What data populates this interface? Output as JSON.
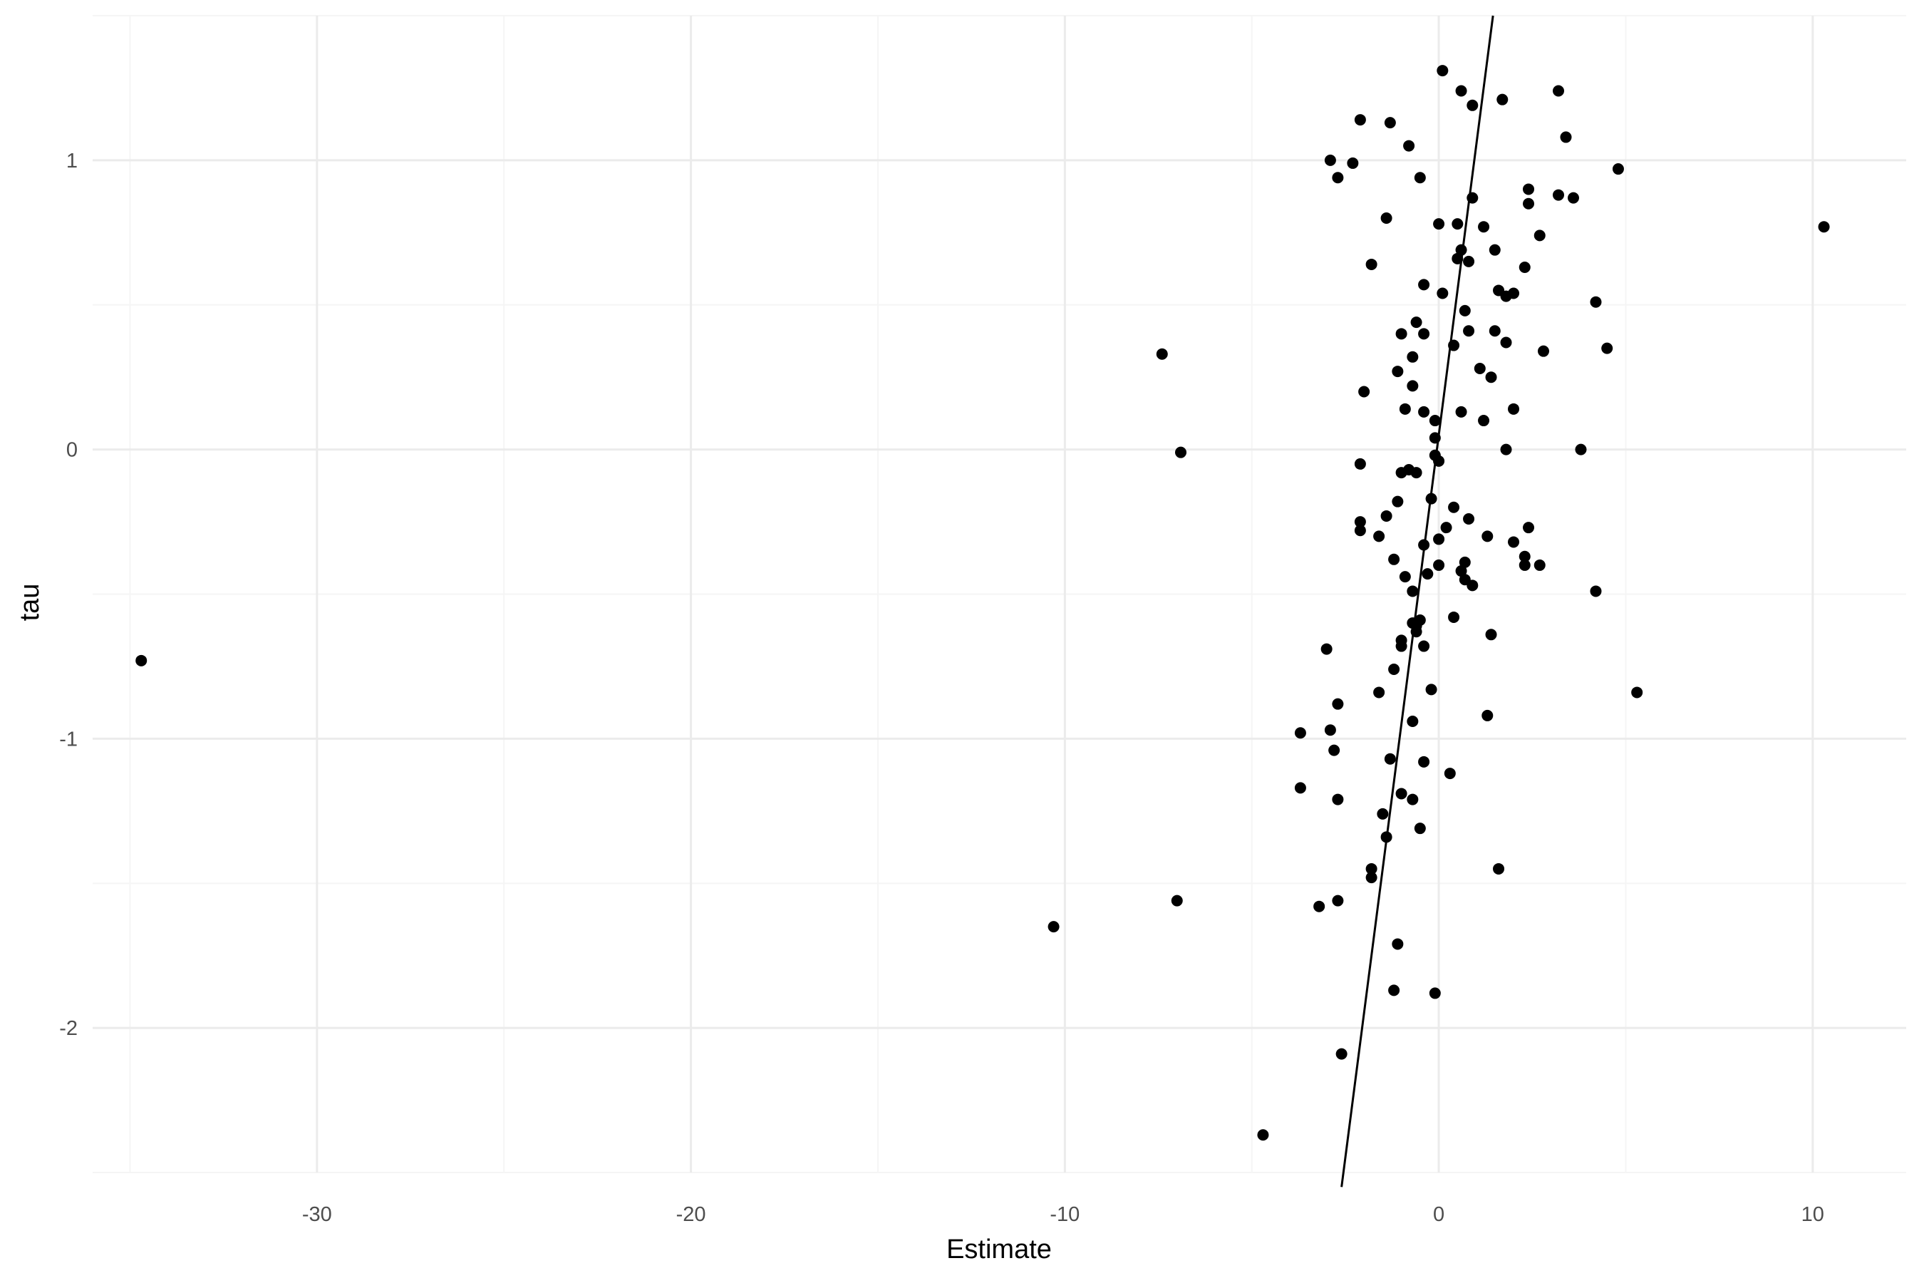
{
  "chart_data": {
    "type": "scatter",
    "title": "",
    "xlabel": "Estimate",
    "ylabel": "tau",
    "xlim": [
      -36.0,
      12.5
    ],
    "ylim": [
      -2.5,
      1.5
    ],
    "x_ticks": [
      -30,
      -20,
      -10,
      0,
      10
    ],
    "y_ticks": [
      -2,
      -1,
      0,
      1
    ],
    "grid": true,
    "legend": "none",
    "colors": {
      "point": "#000000",
      "line": "#000000",
      "grid_major": "#ebebeb",
      "grid_minor": "#f5f5f5"
    },
    "reference_line": {
      "description": "fitted line",
      "points": [
        [
          -2.6,
          -2.55
        ],
        [
          1.45,
          1.5
        ]
      ]
    },
    "points": [
      [
        -34.7,
        -0.73
      ],
      [
        -10.3,
        -1.65
      ],
      [
        -7.4,
        0.33
      ],
      [
        -6.9,
        -0.01
      ],
      [
        -7.0,
        -1.56
      ],
      [
        -4.7,
        -2.37
      ],
      [
        -3.7,
        -0.98
      ],
      [
        -3.7,
        -1.17
      ],
      [
        -3.2,
        -1.58
      ],
      [
        -3.0,
        -0.69
      ],
      [
        -2.9,
        1.0
      ],
      [
        -2.9,
        -0.97
      ],
      [
        -2.8,
        -1.04
      ],
      [
        -2.7,
        0.94
      ],
      [
        -2.7,
        -1.21
      ],
      [
        -2.7,
        -0.88
      ],
      [
        -2.7,
        -1.56
      ],
      [
        -2.6,
        -2.09
      ],
      [
        -2.3,
        0.99
      ],
      [
        -2.1,
        1.14
      ],
      [
        -2.1,
        -0.05
      ],
      [
        -2.1,
        -0.25
      ],
      [
        -2.1,
        -0.28
      ],
      [
        -2.0,
        0.2
      ],
      [
        -1.8,
        0.64
      ],
      [
        -1.8,
        -1.45
      ],
      [
        -1.8,
        -1.48
      ],
      [
        -1.6,
        -0.84
      ],
      [
        -1.6,
        -0.3
      ],
      [
        -1.5,
        -1.26
      ],
      [
        -1.4,
        0.8
      ],
      [
        -1.4,
        -0.23
      ],
      [
        -1.4,
        -1.34
      ],
      [
        -1.3,
        1.13
      ],
      [
        -1.3,
        -1.07
      ],
      [
        -1.2,
        -0.76
      ],
      [
        -1.2,
        -1.87
      ],
      [
        -1.2,
        -0.38
      ],
      [
        -1.1,
        0.27
      ],
      [
        -1.1,
        -0.18
      ],
      [
        -1.1,
        -1.71
      ],
      [
        -1.0,
        0.4
      ],
      [
        -1.0,
        -0.08
      ],
      [
        -1.0,
        -0.66
      ],
      [
        -1.0,
        -0.68
      ],
      [
        -1.0,
        -1.19
      ],
      [
        -0.9,
        0.14
      ],
      [
        -0.9,
        -0.44
      ],
      [
        -0.8,
        1.05
      ],
      [
        -0.8,
        -0.07
      ],
      [
        -0.7,
        0.32
      ],
      [
        -0.7,
        0.22
      ],
      [
        -0.7,
        -0.49
      ],
      [
        -0.7,
        -0.6
      ],
      [
        -0.7,
        -0.94
      ],
      [
        -0.7,
        -1.21
      ],
      [
        -0.6,
        0.44
      ],
      [
        -0.6,
        -0.63
      ],
      [
        -0.6,
        -0.08
      ],
      [
        -0.6,
        -0.61
      ],
      [
        -0.5,
        0.94
      ],
      [
        -0.5,
        -0.59
      ],
      [
        -0.5,
        -1.31
      ],
      [
        -0.4,
        0.57
      ],
      [
        -0.4,
        0.4
      ],
      [
        -0.4,
        0.13
      ],
      [
        -0.4,
        -0.33
      ],
      [
        -0.4,
        -0.68
      ],
      [
        -0.4,
        -1.08
      ],
      [
        -0.3,
        -0.43
      ],
      [
        -0.2,
        -0.17
      ],
      [
        -0.2,
        -0.83
      ],
      [
        -0.1,
        -0.02
      ],
      [
        -0.1,
        0.1
      ],
      [
        -0.1,
        0.04
      ],
      [
        -0.1,
        -1.88
      ],
      [
        0.0,
        0.78
      ],
      [
        0.0,
        -0.04
      ],
      [
        0.0,
        -0.31
      ],
      [
        0.0,
        -0.4
      ],
      [
        0.1,
        1.31
      ],
      [
        0.1,
        0.54
      ],
      [
        0.2,
        -0.27
      ],
      [
        0.3,
        -1.12
      ],
      [
        0.4,
        0.36
      ],
      [
        0.4,
        -0.58
      ],
      [
        0.4,
        -0.2
      ],
      [
        0.5,
        0.66
      ],
      [
        0.5,
        0.78
      ],
      [
        0.6,
        1.24
      ],
      [
        0.6,
        0.69
      ],
      [
        0.6,
        0.13
      ],
      [
        0.6,
        -0.42
      ],
      [
        0.7,
        0.48
      ],
      [
        0.7,
        -0.39
      ],
      [
        0.7,
        -0.45
      ],
      [
        0.8,
        0.65
      ],
      [
        0.8,
        -0.24
      ],
      [
        0.8,
        0.41
      ],
      [
        0.9,
        1.19
      ],
      [
        0.9,
        -0.47
      ],
      [
        0.9,
        0.87
      ],
      [
        1.1,
        0.28
      ],
      [
        1.2,
        0.1
      ],
      [
        1.2,
        0.77
      ],
      [
        1.3,
        -0.3
      ],
      [
        1.3,
        -0.92
      ],
      [
        1.4,
        0.25
      ],
      [
        1.4,
        -0.64
      ],
      [
        1.5,
        0.69
      ],
      [
        1.5,
        0.41
      ],
      [
        1.6,
        0.55
      ],
      [
        1.6,
        -1.45
      ],
      [
        1.7,
        1.21
      ],
      [
        1.8,
        0.53
      ],
      [
        1.8,
        0.37
      ],
      [
        1.8,
        0.0
      ],
      [
        2.0,
        0.54
      ],
      [
        2.0,
        0.14
      ],
      [
        2.0,
        -0.32
      ],
      [
        2.3,
        0.63
      ],
      [
        2.3,
        -0.37
      ],
      [
        2.3,
        -0.4
      ],
      [
        2.4,
        -0.27
      ],
      [
        2.4,
        0.9
      ],
      [
        2.4,
        0.85
      ],
      [
        2.7,
        0.74
      ],
      [
        2.7,
        -0.4
      ],
      [
        2.8,
        0.34
      ],
      [
        3.2,
        1.24
      ],
      [
        3.2,
        0.88
      ],
      [
        3.4,
        1.08
      ],
      [
        3.6,
        0.87
      ],
      [
        3.8,
        0.0
      ],
      [
        4.2,
        0.51
      ],
      [
        4.2,
        -0.49
      ],
      [
        4.5,
        0.35
      ],
      [
        4.8,
        0.97
      ],
      [
        5.3,
        -0.84
      ],
      [
        10.3,
        0.77
      ]
    ]
  }
}
